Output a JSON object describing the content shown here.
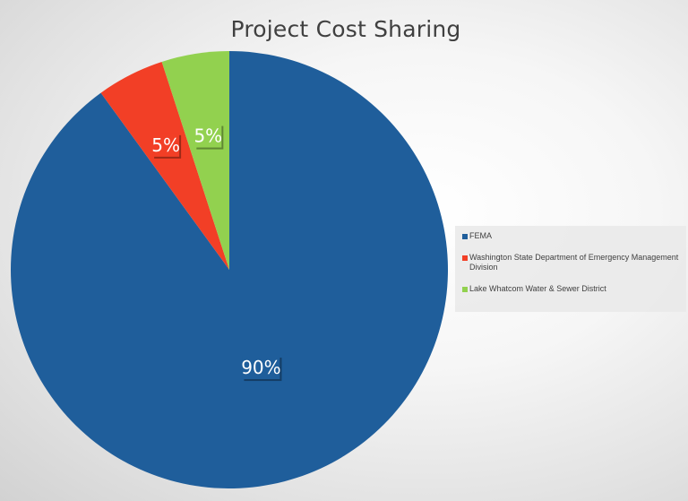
{
  "chart_data": {
    "type": "pie",
    "title": "Project Cost Sharing",
    "slices": [
      {
        "label": "FEMA",
        "value": 90,
        "display": "90%",
        "color": "#1f5e9b"
      },
      {
        "label": "Washington State Department of Emergency Management Division",
        "value": 5,
        "display": "5%",
        "color": "#f23f26"
      },
      {
        "label": "Lake Whatcom Water & Sewer District",
        "value": 5,
        "display": "5%",
        "color": "#92d14f"
      }
    ],
    "legend_position": "right"
  }
}
